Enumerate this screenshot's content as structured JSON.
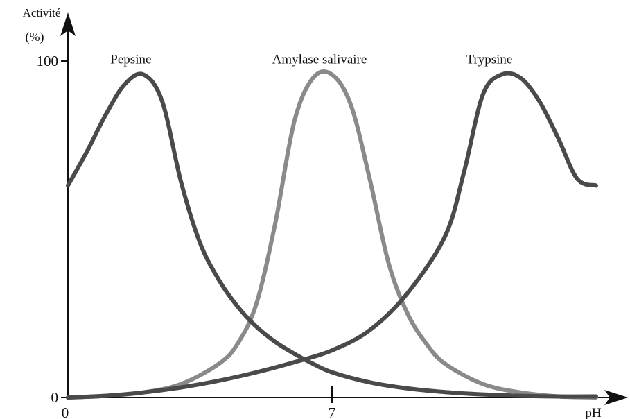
{
  "chart_data": {
    "type": "line",
    "ylabel": "Activité",
    "yunit": "(%)",
    "xlabel": "pH",
    "xlim": [
      0,
      14
    ],
    "ylim": [
      0,
      100
    ],
    "grid": false,
    "x_ticks": [
      {
        "value": 0,
        "label": "0"
      },
      {
        "value": 7,
        "label": "7"
      }
    ],
    "y_ticks": [
      {
        "value": 0,
        "label": "0"
      },
      {
        "value": 100,
        "label": "100"
      }
    ],
    "series": [
      {
        "name": "Pepsine",
        "color": "#4a4a4a",
        "x": [
          0,
          0.5,
          1,
          1.5,
          2,
          2.5,
          3,
          3.5,
          4,
          4.5,
          5,
          5.5,
          6,
          6.5,
          7,
          8,
          9,
          10,
          11,
          12,
          13,
          14
        ],
        "y": [
          63,
          73,
          84,
          93,
          96,
          88,
          64,
          46,
          35,
          27,
          21,
          16.5,
          13,
          10,
          7.5,
          4.5,
          2.7,
          1.6,
          0.9,
          0.5,
          0.3,
          0.3
        ]
      },
      {
        "name": "Amylase salivaire",
        "color": "#8a8a8a",
        "x": [
          0,
          1,
          2,
          3,
          4,
          4.5,
          5,
          5.5,
          6,
          6.5,
          7,
          7.5,
          8,
          8.5,
          9,
          9.5,
          10,
          11,
          12,
          13,
          14
        ],
        "y": [
          0,
          0.5,
          1.5,
          4,
          10,
          16,
          28,
          52,
          82,
          95,
          96,
          87,
          65,
          40,
          25,
          16,
          10,
          4,
          1.5,
          0.3,
          0
        ]
      },
      {
        "name": "Trypsine",
        "color": "#4a4a4a",
        "x": [
          0,
          1,
          2,
          3,
          4,
          5,
          6,
          7,
          8,
          9,
          10,
          10.5,
          11,
          11.5,
          12,
          12.5,
          13,
          13.5,
          14
        ],
        "y": [
          0,
          0.5,
          1.5,
          3,
          5,
          7.5,
          10.5,
          14,
          20,
          31,
          48,
          67,
          90,
          96,
          95,
          88,
          77,
          65,
          63
        ]
      }
    ]
  }
}
